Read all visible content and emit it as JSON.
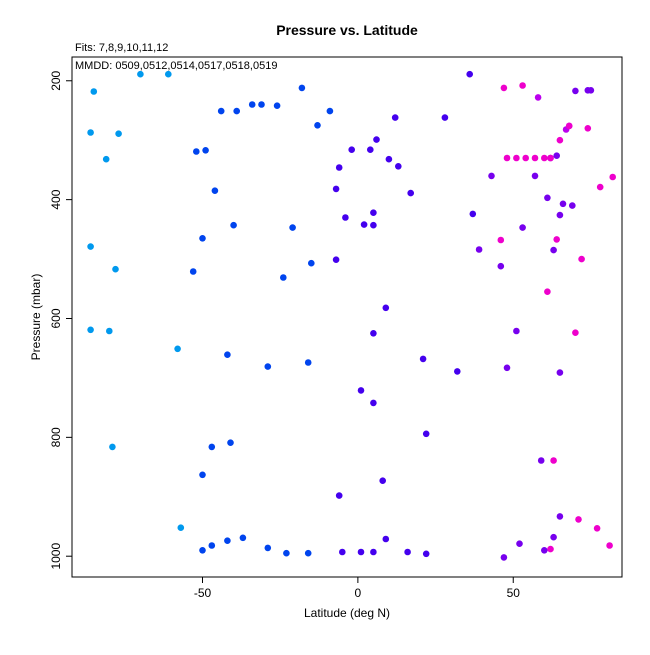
{
  "chart_data": {
    "type": "scatter",
    "title": "Pressure vs. Latitude",
    "annotations": [
      "Fits: 7,8,9,10,11,12",
      "MMDD: 0509,0512,0514,0517,0518,0519"
    ],
    "xlabel": "Latitude (deg N)",
    "ylabel": "Pressure (mbar)",
    "xlim": [
      -92,
      85
    ],
    "ylim": [
      1035,
      160
    ],
    "y_inverted": true,
    "x_ticks": [
      -50,
      0,
      50
    ],
    "y_ticks": [
      200,
      400,
      600,
      800,
      1000
    ],
    "grid": false,
    "legend": "none",
    "colors": {
      "c1": "#0099ee",
      "c2": "#0044ee",
      "c3": "#4400ee",
      "c4": "#7700ee",
      "c5": "#bb00ee",
      "c6": "#ee00cc"
    },
    "points": [
      {
        "x": -70,
        "y": 189,
        "c": "c1"
      },
      {
        "x": -61,
        "y": 189,
        "c": "c1"
      },
      {
        "x": -85,
        "y": 218,
        "c": "c1"
      },
      {
        "x": -86,
        "y": 287,
        "c": "c1"
      },
      {
        "x": -77,
        "y": 289,
        "c": "c1"
      },
      {
        "x": -81,
        "y": 332,
        "c": "c1"
      },
      {
        "x": -86,
        "y": 479,
        "c": "c1"
      },
      {
        "x": -78,
        "y": 517,
        "c": "c1"
      },
      {
        "x": -86,
        "y": 619,
        "c": "c1"
      },
      {
        "x": -80,
        "y": 621,
        "c": "c1"
      },
      {
        "x": -58,
        "y": 651,
        "c": "c1"
      },
      {
        "x": -79,
        "y": 816,
        "c": "c1"
      },
      {
        "x": -57,
        "y": 952,
        "c": "c1"
      },
      {
        "x": -18,
        "y": 212,
        "c": "c2"
      },
      {
        "x": -34,
        "y": 240,
        "c": "c2"
      },
      {
        "x": -31,
        "y": 240,
        "c": "c2"
      },
      {
        "x": -26,
        "y": 242,
        "c": "c2"
      },
      {
        "x": -44,
        "y": 251,
        "c": "c2"
      },
      {
        "x": -39,
        "y": 251,
        "c": "c2"
      },
      {
        "x": -9,
        "y": 251,
        "c": "c2"
      },
      {
        "x": -13,
        "y": 275,
        "c": "c2"
      },
      {
        "x": -52,
        "y": 319,
        "c": "c2"
      },
      {
        "x": -49,
        "y": 317,
        "c": "c2"
      },
      {
        "x": -46,
        "y": 385,
        "c": "c2"
      },
      {
        "x": -40,
        "y": 443,
        "c": "c2"
      },
      {
        "x": -21,
        "y": 447,
        "c": "c2"
      },
      {
        "x": -50,
        "y": 465,
        "c": "c2"
      },
      {
        "x": -15,
        "y": 507,
        "c": "c2"
      },
      {
        "x": -53,
        "y": 521,
        "c": "c2"
      },
      {
        "x": -24,
        "y": 531,
        "c": "c2"
      },
      {
        "x": -42,
        "y": 661,
        "c": "c2"
      },
      {
        "x": -16,
        "y": 674,
        "c": "c2"
      },
      {
        "x": -29,
        "y": 681,
        "c": "c2"
      },
      {
        "x": -41,
        "y": 809,
        "c": "c2"
      },
      {
        "x": -47,
        "y": 816,
        "c": "c2"
      },
      {
        "x": -50,
        "y": 863,
        "c": "c2"
      },
      {
        "x": -37,
        "y": 969,
        "c": "c2"
      },
      {
        "x": -42,
        "y": 974,
        "c": "c2"
      },
      {
        "x": -47,
        "y": 982,
        "c": "c2"
      },
      {
        "x": -29,
        "y": 986,
        "c": "c2"
      },
      {
        "x": -50,
        "y": 990,
        "c": "c2"
      },
      {
        "x": -23,
        "y": 995,
        "c": "c2"
      },
      {
        "x": -16,
        "y": 995,
        "c": "c2"
      },
      {
        "x": 12,
        "y": 262,
        "c": "c3"
      },
      {
        "x": 6,
        "y": 299,
        "c": "c3"
      },
      {
        "x": -2,
        "y": 316,
        "c": "c3"
      },
      {
        "x": 4,
        "y": 316,
        "c": "c3"
      },
      {
        "x": 10,
        "y": 332,
        "c": "c3"
      },
      {
        "x": 13,
        "y": 344,
        "c": "c3"
      },
      {
        "x": -6,
        "y": 346,
        "c": "c3"
      },
      {
        "x": -7,
        "y": 382,
        "c": "c3"
      },
      {
        "x": 17,
        "y": 389,
        "c": "c3"
      },
      {
        "x": 5,
        "y": 422,
        "c": "c3"
      },
      {
        "x": -4,
        "y": 430,
        "c": "c3"
      },
      {
        "x": 2,
        "y": 442,
        "c": "c3"
      },
      {
        "x": 5,
        "y": 443,
        "c": "c3"
      },
      {
        "x": -7,
        "y": 501,
        "c": "c3"
      },
      {
        "x": 9,
        "y": 582,
        "c": "c3"
      },
      {
        "x": 5,
        "y": 625,
        "c": "c3"
      },
      {
        "x": 21,
        "y": 668,
        "c": "c3"
      },
      {
        "x": 32,
        "y": 689,
        "c": "c3"
      },
      {
        "x": 1,
        "y": 721,
        "c": "c3"
      },
      {
        "x": 5,
        "y": 742,
        "c": "c3"
      },
      {
        "x": 22,
        "y": 794,
        "c": "c3"
      },
      {
        "x": 8,
        "y": 873,
        "c": "c3"
      },
      {
        "x": -6,
        "y": 898,
        "c": "c3"
      },
      {
        "x": 9,
        "y": 971,
        "c": "c3"
      },
      {
        "x": -5,
        "y": 993,
        "c": "c3"
      },
      {
        "x": 1,
        "y": 993,
        "c": "c3"
      },
      {
        "x": 5,
        "y": 993,
        "c": "c3"
      },
      {
        "x": 16,
        "y": 993,
        "c": "c3"
      },
      {
        "x": 22,
        "y": 996,
        "c": "c3"
      },
      {
        "x": 36,
        "y": 189,
        "c": "c3"
      },
      {
        "x": 28,
        "y": 262,
        "c": "c3"
      },
      {
        "x": 37,
        "y": 424,
        "c": "c3"
      },
      {
        "x": 39,
        "y": 484,
        "c": "c4"
      },
      {
        "x": 43,
        "y": 360,
        "c": "c4"
      },
      {
        "x": 46,
        "y": 512,
        "c": "c4"
      },
      {
        "x": 51,
        "y": 621,
        "c": "c4"
      },
      {
        "x": 48,
        "y": 683,
        "c": "c4"
      },
      {
        "x": 53,
        "y": 447,
        "c": "c4"
      },
      {
        "x": 57,
        "y": 360,
        "c": "c4"
      },
      {
        "x": 61,
        "y": 397,
        "c": "c4"
      },
      {
        "x": 62,
        "y": 330,
        "c": "c4"
      },
      {
        "x": 64,
        "y": 326,
        "c": "c4"
      },
      {
        "x": 63,
        "y": 485,
        "c": "c4"
      },
      {
        "x": 65,
        "y": 426,
        "c": "c4"
      },
      {
        "x": 66,
        "y": 407,
        "c": "c4"
      },
      {
        "x": 69,
        "y": 410,
        "c": "c4"
      },
      {
        "x": 65,
        "y": 691,
        "c": "c4"
      },
      {
        "x": 59,
        "y": 839,
        "c": "c4"
      },
      {
        "x": 65,
        "y": 933,
        "c": "c4"
      },
      {
        "x": 52,
        "y": 979,
        "c": "c4"
      },
      {
        "x": 63,
        "y": 968,
        "c": "c4"
      },
      {
        "x": 60,
        "y": 990,
        "c": "c4"
      },
      {
        "x": 47,
        "y": 1002,
        "c": "c4"
      },
      {
        "x": 70,
        "y": 217,
        "c": "c4"
      },
      {
        "x": 74,
        "y": 216,
        "c": "c4"
      },
      {
        "x": 75,
        "y": 216,
        "c": "c4"
      },
      {
        "x": 67,
        "y": 282,
        "c": "c5"
      },
      {
        "x": 68,
        "y": 276,
        "c": "c5"
      },
      {
        "x": 58,
        "y": 228,
        "c": "c5"
      },
      {
        "x": 47,
        "y": 212,
        "c": "c6"
      },
      {
        "x": 53,
        "y": 208,
        "c": "c6"
      },
      {
        "x": 68,
        "y": 276,
        "c": "c6"
      },
      {
        "x": 74,
        "y": 280,
        "c": "c6"
      },
      {
        "x": 65,
        "y": 300,
        "c": "c6"
      },
      {
        "x": 48,
        "y": 330,
        "c": "c6"
      },
      {
        "x": 51,
        "y": 330,
        "c": "c6"
      },
      {
        "x": 54,
        "y": 330,
        "c": "c6"
      },
      {
        "x": 57,
        "y": 330,
        "c": "c6"
      },
      {
        "x": 60,
        "y": 330,
        "c": "c6"
      },
      {
        "x": 62,
        "y": 330,
        "c": "c6"
      },
      {
        "x": 78,
        "y": 379,
        "c": "c6"
      },
      {
        "x": 82,
        "y": 362,
        "c": "c6"
      },
      {
        "x": 46,
        "y": 468,
        "c": "c6"
      },
      {
        "x": 64,
        "y": 467,
        "c": "c6"
      },
      {
        "x": 72,
        "y": 500,
        "c": "c6"
      },
      {
        "x": 61,
        "y": 555,
        "c": "c6"
      },
      {
        "x": 70,
        "y": 624,
        "c": "c6"
      },
      {
        "x": 63,
        "y": 839,
        "c": "c6"
      },
      {
        "x": 71,
        "y": 938,
        "c": "c6"
      },
      {
        "x": 77,
        "y": 953,
        "c": "c6"
      },
      {
        "x": 81,
        "y": 982,
        "c": "c6"
      },
      {
        "x": 62,
        "y": 988,
        "c": "c6"
      }
    ]
  }
}
